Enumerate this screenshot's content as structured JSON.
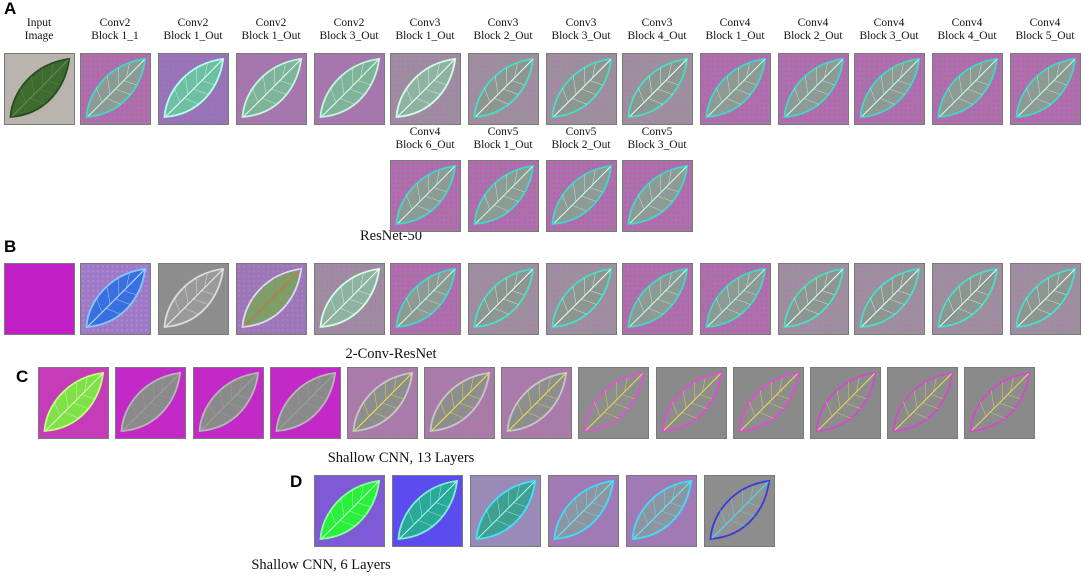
{
  "figure": {
    "panels": [
      {
        "letter": "A",
        "caption": "ResNet-50",
        "column_labels": [
          [
            "Input",
            "Image"
          ],
          [
            "Conv2",
            "Block 1_1"
          ],
          [
            "Conv2",
            "Block 1_Out"
          ],
          [
            "Conv2",
            "Block 1_Out"
          ],
          [
            "Conv2",
            "Block 3_Out"
          ],
          [
            "Conv3",
            "Block 1_Out"
          ],
          [
            "Conv3",
            "Block 2_Out"
          ],
          [
            "Conv3",
            "Block 3_Out"
          ],
          [
            "Conv3",
            "Block 4_Out"
          ],
          [
            "Conv4",
            "Block 1_Out"
          ],
          [
            "Conv4",
            "Block 2_Out"
          ],
          [
            "Conv4",
            "Block 3_Out"
          ],
          [
            "Conv4",
            "Block 4_Out"
          ],
          [
            "Conv4",
            "Block 5_Out"
          ],
          [
            "Conv4",
            "Block 6_Out"
          ],
          [
            "Conv5",
            "Block 1_Out"
          ],
          [
            "Conv5",
            "Block 2_Out"
          ],
          [
            "Conv5",
            "Block 3_Out"
          ]
        ],
        "tile_styles": [
          "photo",
          "magenta-dots",
          "cyan-edge",
          "green-soft",
          "green-soft",
          "green-gray",
          "gray-edge",
          "gray-edge",
          "gray-edge",
          "magenta-dots",
          "magenta-dots",
          "magenta-dots",
          "magenta-dots",
          "magenta-dots",
          "magenta-dots",
          "magenta-dots",
          "magenta-dots",
          "magenta-dots"
        ]
      },
      {
        "letter": "B",
        "caption": "2-Conv-ResNet",
        "tile_styles": [
          "flat-magenta",
          "blue-veins",
          "gray-fine",
          "red-veins",
          "green-gray",
          "magenta-dots",
          "gray-edge",
          "gray-edge",
          "magenta-dots",
          "magenta-dots",
          "gray-edge",
          "gray-edge",
          "gray-edge",
          "gray-edge"
        ]
      },
      {
        "letter": "C",
        "caption": "Shallow CNN, 13 Layers",
        "tile_styles": [
          "bright-green",
          "gray-on-magenta",
          "gray-on-magenta",
          "gray-on-magenta",
          "yellow-vein",
          "yellow-vein",
          "yellow-vein",
          "fade-1",
          "fade-2",
          "fade-2",
          "fade-3",
          "fade-3",
          "fade-3"
        ]
      },
      {
        "letter": "D",
        "caption": "Shallow CNN, 6 Layers",
        "tile_styles": [
          "neon-green",
          "blue-teal",
          "teal-edge",
          "cyan-spots",
          "cyan-spots",
          "blue-outline"
        ]
      }
    ]
  }
}
